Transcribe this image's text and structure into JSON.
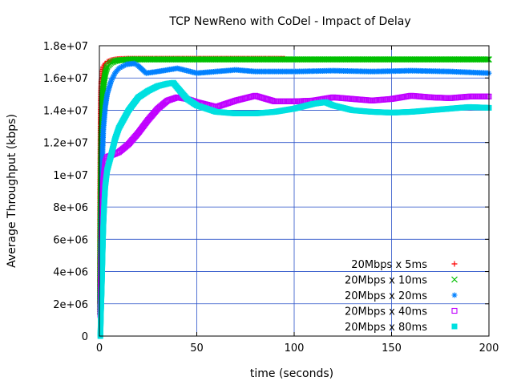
{
  "chart_data": {
    "type": "scatter",
    "title": "TCP NewReno with CoDel - Impact of Delay",
    "xlabel": "time (seconds)",
    "ylabel": "Average Throughput (kbps)",
    "xlim": [
      0,
      200
    ],
    "ylim": [
      0,
      18000000
    ],
    "x_ticks": [
      0,
      50,
      100,
      150,
      200
    ],
    "x_tick_labels": [
      "0",
      "50",
      "100",
      "150",
      "200"
    ],
    "y_ticks": [
      0,
      2000000,
      4000000,
      6000000,
      8000000,
      10000000,
      12000000,
      14000000,
      16000000,
      18000000
    ],
    "y_tick_labels": [
      "0",
      "2e+06",
      "4e+06",
      "6e+06",
      "8e+06",
      "1e+07",
      "1.2e+07",
      "1.4e+07",
      "1.6e+07",
      "1.8e+07"
    ],
    "grid": true,
    "legend_position": "bottom-right",
    "series": [
      {
        "name": "20Mbps x 5ms",
        "color": "#ff0000",
        "marker": "plus",
        "points": [
          [
            0.2,
            2000000
          ],
          [
            0.4,
            9000000
          ],
          [
            0.6,
            13000000
          ],
          [
            0.8,
            15000000
          ],
          [
            1,
            15800000
          ],
          [
            1.5,
            16300000
          ],
          [
            2,
            16700000
          ],
          [
            3,
            16900000
          ],
          [
            4,
            17000000
          ],
          [
            6,
            17100000
          ],
          [
            8,
            17150000
          ],
          [
            10,
            17180000
          ],
          [
            15,
            17200000
          ],
          [
            20,
            17200000
          ],
          [
            30,
            17200000
          ],
          [
            40,
            17200000
          ],
          [
            50,
            17200000
          ],
          [
            60,
            17200000
          ],
          [
            70,
            17200000
          ],
          [
            80,
            17200000
          ],
          [
            90,
            17200000
          ],
          [
            95,
            17200000
          ]
        ]
      },
      {
        "name": "20Mbps x 10ms",
        "color": "#00c000",
        "marker": "cross",
        "points": [
          [
            0.3,
            1500000
          ],
          [
            0.5,
            6000000
          ],
          [
            0.8,
            10500000
          ],
          [
            1,
            12500000
          ],
          [
            1.5,
            14500000
          ],
          [
            2,
            15500000
          ],
          [
            3,
            16300000
          ],
          [
            4,
            16700000
          ],
          [
            6,
            16950000
          ],
          [
            8,
            17050000
          ],
          [
            10,
            17100000
          ],
          [
            15,
            17150000
          ],
          [
            20,
            17150000
          ],
          [
            40,
            17150000
          ],
          [
            60,
            17150000
          ],
          [
            80,
            17150000
          ],
          [
            100,
            17150000
          ],
          [
            120,
            17150000
          ],
          [
            140,
            17150000
          ],
          [
            160,
            17150000
          ],
          [
            180,
            17150000
          ],
          [
            200,
            17150000
          ]
        ]
      },
      {
        "name": "20Mbps x 20ms",
        "color": "#0080ff",
        "marker": "star",
        "points": [
          [
            0.4,
            1400000
          ],
          [
            0.6,
            4000000
          ],
          [
            1,
            8000000
          ],
          [
            1.5,
            11000000
          ],
          [
            2,
            12800000
          ],
          [
            3,
            14200000
          ],
          [
            4,
            15000000
          ],
          [
            6,
            15800000
          ],
          [
            8,
            16300000
          ],
          [
            10,
            16600000
          ],
          [
            14,
            16850000
          ],
          [
            18,
            16900000
          ],
          [
            20,
            16750000
          ],
          [
            24,
            16300000
          ],
          [
            30,
            16400000
          ],
          [
            40,
            16600000
          ],
          [
            50,
            16300000
          ],
          [
            60,
            16400000
          ],
          [
            70,
            16500000
          ],
          [
            80,
            16400000
          ],
          [
            100,
            16400000
          ],
          [
            120,
            16450000
          ],
          [
            140,
            16400000
          ],
          [
            160,
            16450000
          ],
          [
            180,
            16400000
          ],
          [
            200,
            16300000
          ]
        ]
      },
      {
        "name": "20Mbps x 40ms",
        "color": "#c000ff",
        "marker": "square-open",
        "points": [
          [
            0.5,
            1300000
          ],
          [
            0.8,
            3500000
          ],
          [
            1.2,
            6500000
          ],
          [
            1.6,
            8100000
          ],
          [
            2,
            9600000
          ],
          [
            3,
            10800000
          ],
          [
            4,
            11100000
          ],
          [
            6,
            11200000
          ],
          [
            10,
            11400000
          ],
          [
            15,
            11900000
          ],
          [
            20,
            12600000
          ],
          [
            25,
            13400000
          ],
          [
            30,
            14100000
          ],
          [
            35,
            14600000
          ],
          [
            40,
            14800000
          ],
          [
            45,
            14700000
          ],
          [
            50,
            14500000
          ],
          [
            60,
            14200000
          ],
          [
            70,
            14600000
          ],
          [
            80,
            14900000
          ],
          [
            90,
            14550000
          ],
          [
            100,
            14550000
          ],
          [
            110,
            14600000
          ],
          [
            120,
            14800000
          ],
          [
            130,
            14700000
          ],
          [
            140,
            14600000
          ],
          [
            150,
            14700000
          ],
          [
            160,
            14900000
          ],
          [
            170,
            14800000
          ],
          [
            180,
            14750000
          ],
          [
            190,
            14850000
          ],
          [
            200,
            14850000
          ]
        ]
      },
      {
        "name": "20Mbps x 80ms",
        "color": "#00e0e0",
        "marker": "square-filled",
        "points": [
          [
            0.5,
            0
          ],
          [
            0.8,
            1400000
          ],
          [
            1.2,
            3000000
          ],
          [
            1.6,
            5000000
          ],
          [
            2,
            6800000
          ],
          [
            2.5,
            8200000
          ],
          [
            3,
            9300000
          ],
          [
            4,
            10300000
          ],
          [
            6,
            11200000
          ],
          [
            8,
            12200000
          ],
          [
            10,
            12900000
          ],
          [
            15,
            14000000
          ],
          [
            20,
            14800000
          ],
          [
            25,
            15200000
          ],
          [
            30,
            15500000
          ],
          [
            35,
            15650000
          ],
          [
            38,
            15700000
          ],
          [
            40,
            15400000
          ],
          [
            45,
            14700000
          ],
          [
            50,
            14300000
          ],
          [
            60,
            13900000
          ],
          [
            70,
            13800000
          ],
          [
            80,
            13800000
          ],
          [
            90,
            13900000
          ],
          [
            100,
            14100000
          ],
          [
            110,
            14400000
          ],
          [
            116,
            14500000
          ],
          [
            120,
            14300000
          ],
          [
            130,
            14000000
          ],
          [
            140,
            13900000
          ],
          [
            150,
            13850000
          ],
          [
            160,
            13900000
          ],
          [
            170,
            14000000
          ],
          [
            180,
            14100000
          ],
          [
            190,
            14200000
          ],
          [
            200,
            14150000
          ]
        ]
      }
    ]
  }
}
